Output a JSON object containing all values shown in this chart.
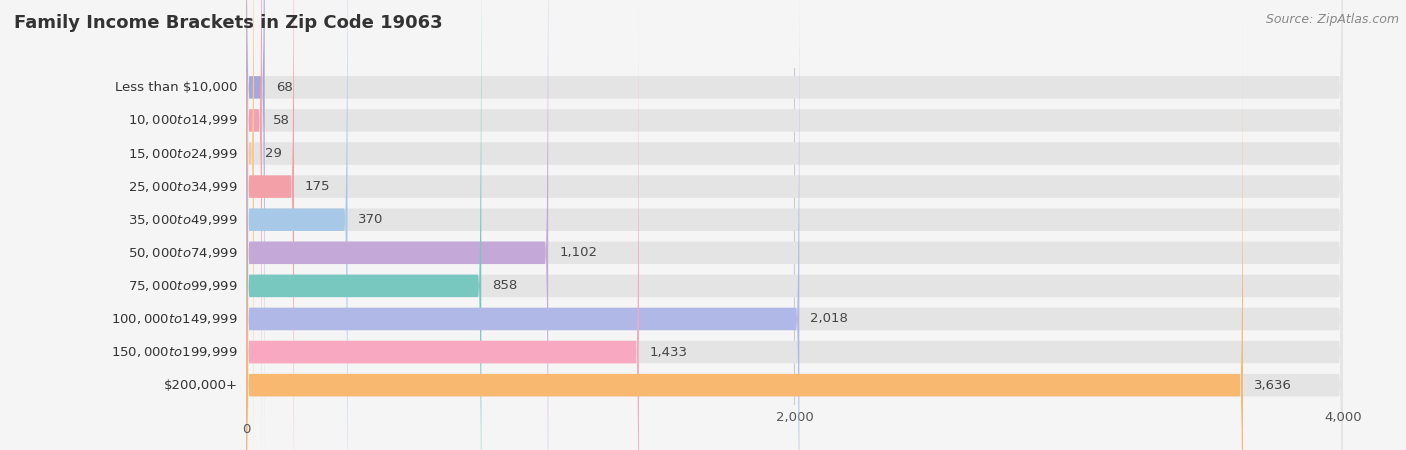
{
  "title": "Family Income Brackets in Zip Code 19063",
  "source": "Source: ZipAtlas.com",
  "categories": [
    "Less than $10,000",
    "$10,000 to $14,999",
    "$15,000 to $24,999",
    "$25,000 to $34,999",
    "$35,000 to $49,999",
    "$50,000 to $74,999",
    "$75,000 to $99,999",
    "$100,000 to $149,999",
    "$150,000 to $199,999",
    "$200,000+"
  ],
  "values": [
    68,
    58,
    29,
    175,
    370,
    1102,
    858,
    2018,
    1433,
    3636
  ],
  "bar_colors": [
    "#a8a8d8",
    "#f4a0b0",
    "#f8c898",
    "#f4a0a8",
    "#a8c8e8",
    "#c4a8d8",
    "#78c8c0",
    "#b0b8e8",
    "#f8a8c0",
    "#f8b870"
  ],
  "background_color": "#f5f5f5",
  "bar_background_color": "#e4e4e4",
  "xlim": [
    0,
    4000
  ],
  "xticks": [
    0,
    2000,
    4000
  ],
  "title_fontsize": 13,
  "label_fontsize": 9.5,
  "value_fontsize": 9.5
}
